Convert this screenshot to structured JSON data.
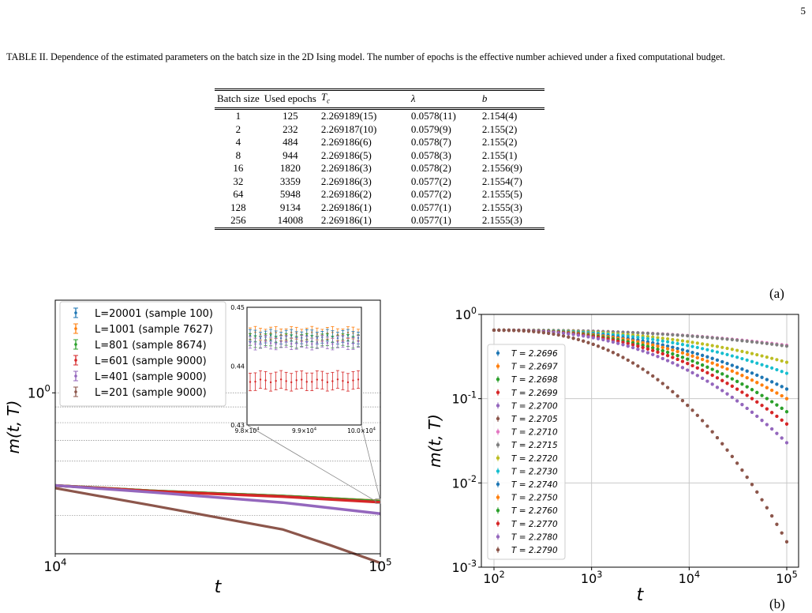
{
  "page_number": "5",
  "caption": "TABLE II. Dependence of the estimated parameters on the batch size in the 2D Ising model. The number of epochs is the effective number achieved under a fixed computational budget.",
  "table": {
    "headers": [
      "Batch size",
      "Used epochs",
      "T_c",
      "λ",
      "b"
    ],
    "rows": [
      [
        "1",
        "125",
        "2.269189(15)",
        "0.0578(11)",
        "2.154(4)"
      ],
      [
        "2",
        "232",
        "2.269187(10)",
        "0.0579(9)",
        "2.155(2)"
      ],
      [
        "4",
        "484",
        "2.269186(6)",
        "0.0578(7)",
        "2.155(2)"
      ],
      [
        "8",
        "944",
        "2.269186(5)",
        "0.0578(3)",
        "2.155(1)"
      ],
      [
        "16",
        "1820",
        "2.269186(3)",
        "0.0578(2)",
        "2.1556(9)"
      ],
      [
        "32",
        "3359",
        "2.269186(3)",
        "0.0577(2)",
        "2.1554(7)"
      ],
      [
        "64",
        "5948",
        "2.269186(2)",
        "0.0577(2)",
        "2.1555(5)"
      ],
      [
        "128",
        "9134",
        "2.269186(1)",
        "0.0577(1)",
        "2.1555(3)"
      ],
      [
        "256",
        "14008",
        "2.269186(1)",
        "0.0577(1)",
        "2.1555(3)"
      ]
    ]
  },
  "chart_data": [
    {
      "id": "a",
      "panel_label": "(a)",
      "type": "line",
      "xlabel": "t",
      "ylabel": "m(t, T)",
      "xscale": "log",
      "yscale": "log",
      "xlim": [
        10000,
        100000
      ],
      "ylim": [
        0.3,
        2.0
      ],
      "xticks": [
        "10^4",
        "10^5"
      ],
      "yticks": [
        "10^0"
      ],
      "legend_position": "upper-left",
      "series": [
        {
          "name": "L=20001 (sample 100)",
          "color": "#1f77b4",
          "x": [
            10000,
            20000,
            50000,
            100000
          ],
          "y": [
            0.5,
            0.48,
            0.462,
            0.445
          ]
        },
        {
          "name": "L=1001 (sample 7627)",
          "color": "#ff7f0e",
          "x": [
            10000,
            20000,
            50000,
            100000
          ],
          "y": [
            0.5,
            0.48,
            0.462,
            0.445
          ]
        },
        {
          "name": "L=801 (sample 8674)",
          "color": "#2ca02c",
          "x": [
            10000,
            20000,
            50000,
            100000
          ],
          "y": [
            0.5,
            0.48,
            0.462,
            0.444
          ]
        },
        {
          "name": "L=601 (sample 9000)",
          "color": "#d62728",
          "x": [
            10000,
            20000,
            50000,
            100000
          ],
          "y": [
            0.5,
            0.479,
            0.46,
            0.441
          ]
        },
        {
          "name": "L=401 (sample 9000)",
          "color": "#9467bd",
          "x": [
            10000,
            20000,
            50000,
            100000
          ],
          "y": [
            0.5,
            0.475,
            0.44,
            0.405
          ]
        },
        {
          "name": "L=201 (sample 9000)",
          "color": "#8c564b",
          "x": [
            10000,
            20000,
            50000,
            70000,
            100000
          ],
          "y": [
            0.49,
            0.43,
            0.36,
            0.32,
            0.28
          ]
        }
      ],
      "inset": {
        "xlim": [
          98000,
          100000
        ],
        "ylim": [
          0.43,
          0.45
        ],
        "xticks": [
          "9.8×10^4",
          "9.9×10^4",
          "10.0×10^4"
        ],
        "yticks": [
          "0.43",
          "0.44",
          "0.45"
        ],
        "series": [
          {
            "color": "#ff7f0e",
            "y": 0.4455,
            "err": 0.001
          },
          {
            "color": "#1f77b4",
            "y": 0.445,
            "err": 0.001
          },
          {
            "color": "#2ca02c",
            "y": 0.4443,
            "err": 0.001
          },
          {
            "color": "#9467bd",
            "y": 0.444,
            "err": 0.001
          },
          {
            "color": "#d62728",
            "y": 0.4375,
            "err": 0.0015
          }
        ]
      }
    },
    {
      "id": "b",
      "panel_label": "(b)",
      "type": "scatter",
      "xlabel": "t",
      "ylabel": "m(t, T)",
      "xscale": "log",
      "yscale": "log",
      "xlim": [
        100,
        100000
      ],
      "ylim": [
        0.001,
        1
      ],
      "xticks": [
        "10^2",
        "10^3",
        "10^4",
        "10^5"
      ],
      "yticks": [
        "10^-3",
        "10^-2",
        "10^-1",
        "10^0"
      ],
      "grid": true,
      "legend_position": "lower-left",
      "x_start": 100,
      "y_start": 0.65,
      "series": [
        {
          "name": "T = 2.2696",
          "color": "#1f77b4",
          "y_end": 0.13
        },
        {
          "name": "T = 2.2697",
          "color": "#ff7f0e",
          "y_end": 0.1
        },
        {
          "name": "T = 2.2698",
          "color": "#2ca02c",
          "y_end": 0.07
        },
        {
          "name": "T = 2.2699",
          "color": "#d62728",
          "y_end": 0.05
        },
        {
          "name": "T = 2.2700",
          "color": "#9467bd",
          "y_end": 0.03
        },
        {
          "name": "T = 2.2705",
          "color": "#8c564b",
          "y_end": 0.002
        },
        {
          "name": "T = 2.2710",
          "color": "#e377c2",
          "y_end": 0.43
        },
        {
          "name": "T = 2.2715",
          "color": "#7f7f7f",
          "y_end": 0.42
        },
        {
          "name": "T = 2.2720",
          "color": "#bcbd22",
          "y_end": 0.27
        },
        {
          "name": "T = 2.2730",
          "color": "#17becf",
          "y_end": 0.2
        },
        {
          "name": "T = 2.2740",
          "color": "#1f77b4",
          "y_end": 0.13
        },
        {
          "name": "T = 2.2750",
          "color": "#ff7f0e",
          "y_end": 0.1
        },
        {
          "name": "T = 2.2760",
          "color": "#2ca02c",
          "y_end": 0.07
        },
        {
          "name": "T = 2.2770",
          "color": "#d62728",
          "y_end": 0.05
        },
        {
          "name": "T = 2.2780",
          "color": "#9467bd",
          "y_end": 0.03
        },
        {
          "name": "T = 2.2790",
          "color": "#8c564b",
          "y_end": 0.002
        }
      ]
    }
  ]
}
